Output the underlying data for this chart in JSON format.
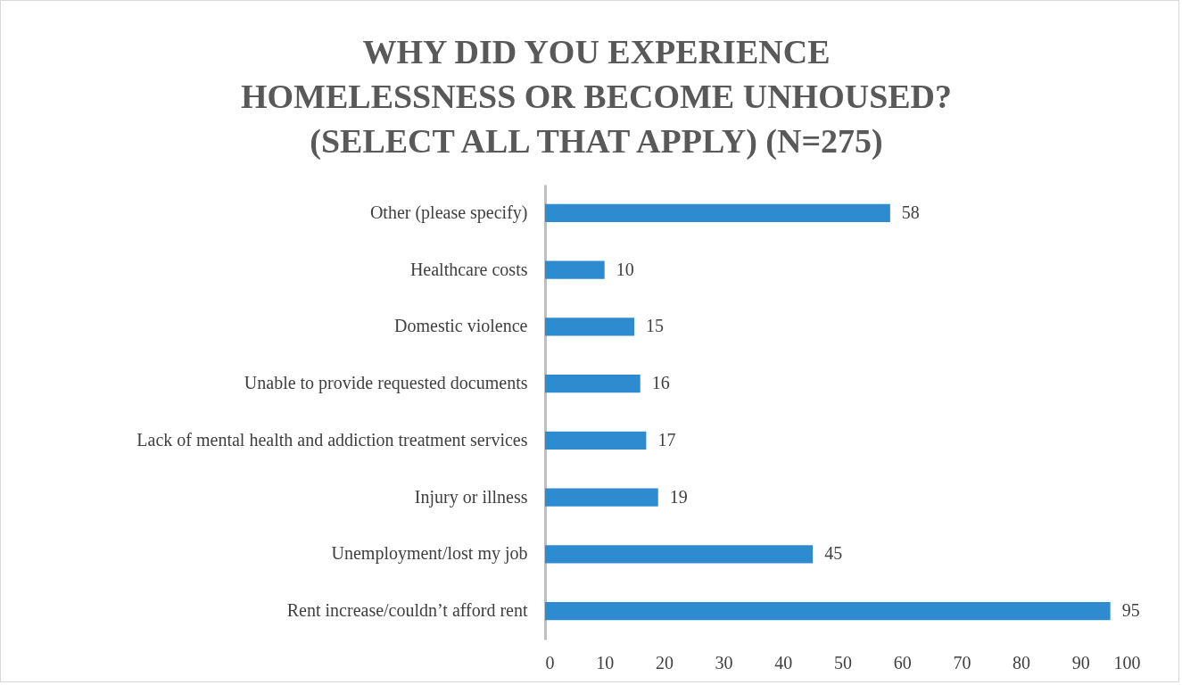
{
  "chart_data": {
    "type": "bar",
    "orientation": "horizontal",
    "title": "WHY DID YOU EXPERIENCE HOMELESSNESS OR BECOME UNHOUSED? (SELECT ALL THAT APPLY) (N=275)",
    "categories": [
      "Other (please specify)",
      "Healthcare costs",
      "Domestic violence",
      "Unable to provide requested documents",
      "Lack of mental health and addiction treatment services",
      "Injury or illness",
      "Unemployment/lost my job",
      "Rent increase/couldn’t afford rent"
    ],
    "values": [
      58,
      10,
      15,
      16,
      17,
      19,
      45,
      95
    ],
    "color": "#2e8bd0",
    "xlim": [
      0,
      100
    ],
    "xticks": [
      0,
      10,
      20,
      30,
      40,
      50,
      60,
      70,
      80,
      90,
      100
    ],
    "data_labels": true,
    "grid": false
  }
}
